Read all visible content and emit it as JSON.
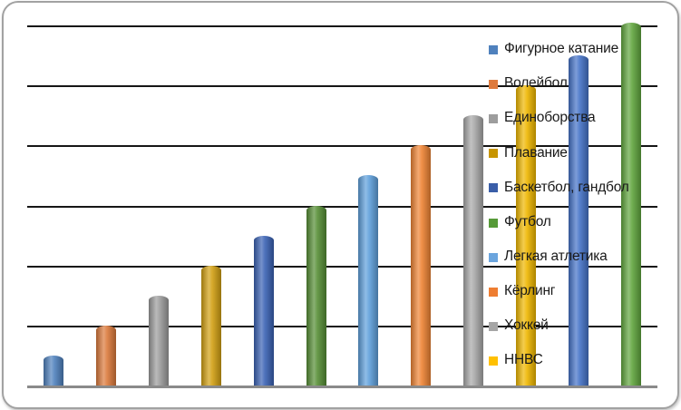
{
  "window": {
    "background_color": "#FFFFFF",
    "card_border_color": "#A2A2A2"
  },
  "chart_data": {
    "type": "bar",
    "title": "",
    "xlabel": "",
    "ylabel": "",
    "axis_tick_labels_visible": false,
    "grid": true,
    "gridline_color": "#161616",
    "axis_line_color": "#8A8A8A",
    "ylim": [
      0,
      6
    ],
    "gridline_step": 1,
    "bar_style": "cylinder-gradient",
    "legend_position": "right",
    "legend_text_color": "#191919",
    "series": [
      {
        "name": "Фигурное катание",
        "value": 0.5,
        "bar_color": "#4F81BD",
        "legend_color": "#4F81BD"
      },
      {
        "name": "Волейбол",
        "value": 1.0,
        "bar_color": "#DC7A3C",
        "legend_color": "#DE7A3D"
      },
      {
        "name": "Единоборства",
        "value": 1.5,
        "bar_color": "#9C9C9C",
        "legend_color": "#9D9D9D"
      },
      {
        "name": "Плавание",
        "value": 2.0,
        "bar_color": "#D2A013",
        "legend_color": "#C79500"
      },
      {
        "name": "Баскетбол, гандбол",
        "value": 2.5,
        "bar_color": "#3A62B4",
        "legend_color": "#3A5EA8"
      },
      {
        "name": "Футбол",
        "value": 3.0,
        "bar_color": "#568E35",
        "legend_color": "#569A38"
      },
      {
        "name": "Легкая атлетика",
        "value": 3.5,
        "bar_color": "#5FA0DC",
        "legend_color": "#6BA5DE"
      },
      {
        "name": "Кёрлинг",
        "value": 4.0,
        "bar_color": "#EF8434",
        "legend_color": "#EE7D31"
      },
      {
        "name": "Хоккей",
        "value": 4.5,
        "bar_color": "#A8A8A8",
        "legend_color": "#A6A6A6"
      },
      {
        "name": "ННВС",
        "value": 5.0,
        "bar_color": "#EFB700",
        "legend_color": "#FFC000"
      },
      {
        "name": "",
        "value": 5.5,
        "bar_color": "#4573C8",
        "legend_color": null
      },
      {
        "name": "",
        "value": 6.05,
        "bar_color": "#61A63E",
        "legend_color": null
      }
    ]
  }
}
